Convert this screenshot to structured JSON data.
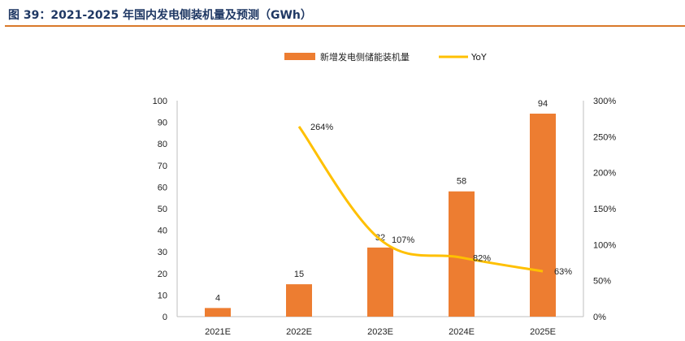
{
  "figure": {
    "caption": "图 39：2021-2025 年国内发电侧装机量及预测（GWh）"
  },
  "chart_data": {
    "type": "bar",
    "categories": [
      "2021E",
      "2022E",
      "2023E",
      "2024E",
      "2025E"
    ],
    "series": [
      {
        "name": "新增发电侧储能装机量",
        "kind": "bar",
        "axis": "left",
        "values": [
          4,
          15,
          32,
          58,
          94
        ],
        "color": "#ed7d31"
      },
      {
        "name": "YoY",
        "kind": "line",
        "axis": "right",
        "values": [
          null,
          264,
          107,
          82,
          63
        ],
        "labels": [
          "",
          "264%",
          "107%",
          "82%",
          "63%"
        ],
        "color": "#ffc000"
      }
    ],
    "y_left": {
      "min": 0,
      "max": 100,
      "step": 10,
      "ticks": [
        "0",
        "10",
        "20",
        "30",
        "40",
        "50",
        "60",
        "70",
        "80",
        "90",
        "100"
      ]
    },
    "y_right": {
      "min": 0,
      "max": 300,
      "step": 50,
      "ticks": [
        "0%",
        "50%",
        "100%",
        "150%",
        "200%",
        "250%",
        "300%"
      ]
    },
    "legend_position": "top-center",
    "grid": false
  }
}
